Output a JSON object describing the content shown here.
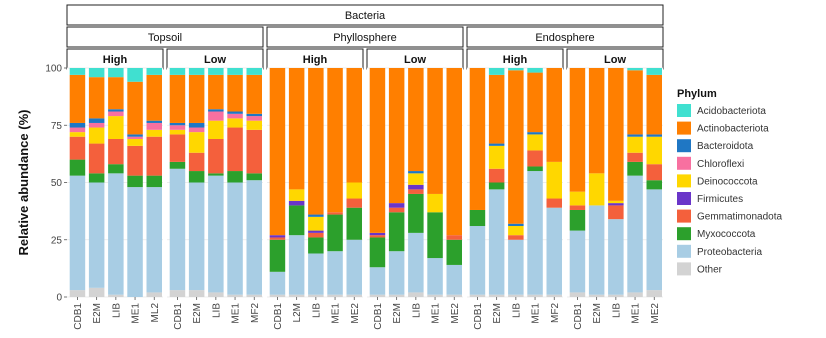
{
  "chart_data": {
    "type": "bar",
    "stacked": true,
    "facet_top_label": "Bacteria",
    "compartments": [
      {
        "name": "Topsoil",
        "groups": [
          {
            "name": "High",
            "samples": [
              "CDB1",
              "E2M",
              "LIB",
              "ME1",
              "ML2"
            ]
          },
          {
            "name": "Low",
            "samples": [
              "CDB1",
              "E2M",
              "LIB",
              "ME1",
              "MF2"
            ]
          }
        ]
      },
      {
        "name": "Phyllosphere",
        "groups": [
          {
            "name": "High",
            "samples": [
              "CDB1",
              "L2M",
              "LIB",
              "ME1",
              "ME2"
            ]
          },
          {
            "name": "Low",
            "samples": [
              "CDB1",
              "E2M",
              "LIB",
              "ME1",
              "ME2"
            ]
          }
        ]
      },
      {
        "name": "Endosphere",
        "groups": [
          {
            "name": "High",
            "samples": [
              "CDB1",
              "E2M",
              "LIB",
              "ME1",
              "MF2"
            ]
          },
          {
            "name": "Low",
            "samples": [
              "CDB1",
              "E2M",
              "LIB",
              "ME1",
              "ME2"
            ]
          }
        ]
      }
    ],
    "ylabel": "Relative abundance (%)",
    "ylim": [
      0,
      100
    ],
    "yticks": [
      0,
      25,
      50,
      75,
      100
    ],
    "legend_title": "Phylum",
    "legend_position": "right",
    "phyla": [
      {
        "name": "Acidobacteriota",
        "color": "#40e0d0"
      },
      {
        "name": "Actinobacteriota",
        "color": "#ff7f00"
      },
      {
        "name": "Bacteroidota",
        "color": "#1f77c4"
      },
      {
        "name": "Chloroflexi",
        "color": "#f870a0"
      },
      {
        "name": "Deinococcota",
        "color": "#ffd700"
      },
      {
        "name": "Firmicutes",
        "color": "#6a35c9"
      },
      {
        "name": "Gemmatimonadota",
        "color": "#f4603c"
      },
      {
        "name": "Myxococcota",
        "color": "#2ca02c"
      },
      {
        "name": "Proteobacteria",
        "color": "#a8cde4"
      },
      {
        "name": "Other",
        "color": "#d3d3d3"
      }
    ],
    "stack_order_bottom_to_top": [
      "Other",
      "Proteobacteria",
      "Myxococcota",
      "Gemmatimonadota",
      "Firmicutes",
      "Deinococcota",
      "Chloroflexi",
      "Bacteroidota",
      "Actinobacteriota",
      "Acidobacteriota"
    ],
    "values": [
      [
        [
          3,
          21,
          2,
          2,
          2,
          0,
          10,
          7,
          50,
          3
        ],
        [
          4,
          18,
          2,
          2,
          7,
          0,
          13,
          4,
          46,
          4
        ],
        [
          4,
          14,
          1,
          2,
          10,
          0,
          11,
          4,
          53,
          1
        ],
        [
          6,
          23,
          1,
          1,
          3,
          0,
          13,
          5,
          48,
          0
        ],
        [
          3,
          20,
          1,
          3,
          3,
          0,
          17,
          5,
          46,
          2
        ]
      ],
      [
        [
          3,
          21,
          1,
          2,
          2,
          0,
          12,
          3,
          53,
          3
        ],
        [
          3,
          21,
          2,
          2,
          9,
          0,
          8,
          5,
          47,
          3
        ],
        [
          3,
          15,
          1,
          4,
          8,
          0,
          15,
          1,
          51,
          2
        ],
        [
          3,
          16,
          1,
          2,
          4,
          0,
          19,
          5,
          49,
          1
        ],
        [
          3,
          17,
          1,
          2,
          4,
          0,
          19,
          3,
          50,
          1
        ]
      ],
      [
        [
          0,
          73,
          0,
          0,
          0,
          1,
          1,
          14,
          10,
          1
        ],
        [
          0,
          53,
          0,
          0,
          5,
          2,
          0,
          13,
          26,
          1
        ],
        [
          0,
          64,
          1,
          0,
          6,
          1,
          2,
          7,
          18,
          1
        ],
        [
          0,
          63,
          0,
          0,
          0,
          0,
          1,
          16,
          19,
          1
        ],
        [
          0,
          50,
          0,
          0,
          7,
          0,
          4,
          14,
          24,
          1
        ]
      ],
      [
        [
          0,
          72,
          0,
          0,
          0,
          1,
          1,
          13,
          12,
          1
        ],
        [
          0,
          59,
          0,
          0,
          0,
          2,
          2,
          17,
          19,
          1
        ],
        [
          0,
          45,
          1,
          0,
          5,
          2,
          2,
          17,
          26,
          2
        ],
        [
          0,
          55,
          0,
          0,
          8,
          0,
          0,
          20,
          16,
          1
        ],
        [
          0,
          73,
          0,
          0,
          0,
          0,
          2,
          11,
          13,
          1
        ]
      ],
      [
        [
          0,
          62,
          0,
          0,
          0,
          0,
          0,
          7,
          30,
          1
        ],
        [
          3,
          30,
          1,
          0,
          10,
          0,
          6,
          3,
          46,
          1
        ],
        [
          1,
          67,
          1,
          0,
          4,
          0,
          2,
          0,
          24,
          1
        ],
        [
          2,
          26,
          1,
          0,
          7,
          0,
          7,
          2,
          54,
          1
        ],
        [
          0,
          41,
          0,
          0,
          16,
          0,
          4,
          0,
          38,
          1
        ]
      ],
      [
        [
          0,
          54,
          0,
          0,
          6,
          0,
          2,
          9,
          27,
          2
        ],
        [
          0,
          46,
          0,
          0,
          14,
          0,
          0,
          0,
          39,
          1
        ],
        [
          0,
          58,
          0,
          0,
          1,
          1,
          6,
          0,
          33,
          1
        ],
        [
          1,
          28,
          1,
          0,
          7,
          0,
          4,
          6,
          51,
          2
        ],
        [
          3,
          26,
          1,
          0,
          12,
          0,
          7,
          4,
          44,
          3
        ]
      ]
    ]
  }
}
